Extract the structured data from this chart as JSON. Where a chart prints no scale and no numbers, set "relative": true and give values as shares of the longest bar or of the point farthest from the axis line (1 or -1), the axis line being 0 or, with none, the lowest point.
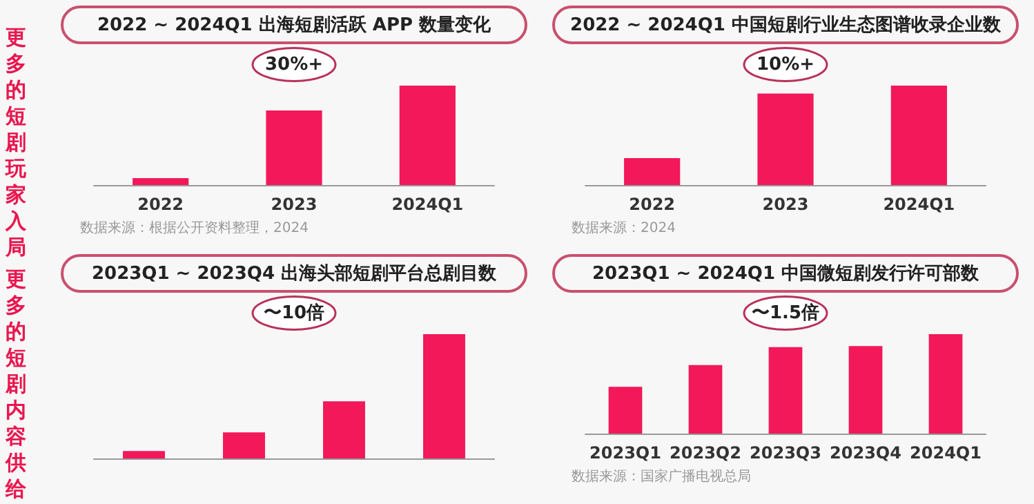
{
  "chart_data": [
    {
      "type": "other",
      "annotations": [
        "更多的短剧玩家入局",
        "更多的短剧内容供给"
      ]
    },
    {
      "type": "bar",
      "title": "2022 ~ 2024Q1 出海短剧活跃 APP 数量变化",
      "categories": [
        "2022",
        "2023",
        "2024Q1"
      ],
      "values": [
        0.07,
        0.75,
        1
      ],
      "relative": true,
      "color": "#f2185a",
      "annotations": [
        "30%+",
        "数据来源：根据公开资料整理，2024"
      ]
    },
    {
      "type": "bar",
      "title": "2022 ~ 2024Q1 中国短剧行业生态图谱收录企业数",
      "categories": [
        "2022",
        "2023",
        "2024Q1"
      ],
      "values": [
        0.27,
        0.92,
        1
      ],
      "relative": true,
      "color": "#f2185a",
      "annotations": [
        "10%+",
        "数据来源：2024"
      ]
    },
    {
      "type": "bar",
      "title": "2023Q1 ~ 2023Q4 出海头部短剧平台总剧目数",
      "categories": [
        null,
        null,
        null,
        null
      ],
      "values": [
        0.06,
        0.21,
        0.46,
        1
      ],
      "relative": true,
      "color": "#f2185a",
      "annotations": [
        "〜10倍"
      ]
    },
    {
      "type": "bar",
      "title": "2023Q1 ~ 2024Q1 中国微短剧发行许可部数",
      "categories": [
        "2023Q1",
        "2023Q2",
        "2023Q3",
        "2023Q4",
        "2024Q1"
      ],
      "values": [
        0.47,
        0.69,
        0.87,
        0.88,
        1
      ],
      "relative": true,
      "color": "#f2185a",
      "annotations": [
        "〜1.5倍",
        "数据来源：国家广播电视总局"
      ]
    }
  ]
}
